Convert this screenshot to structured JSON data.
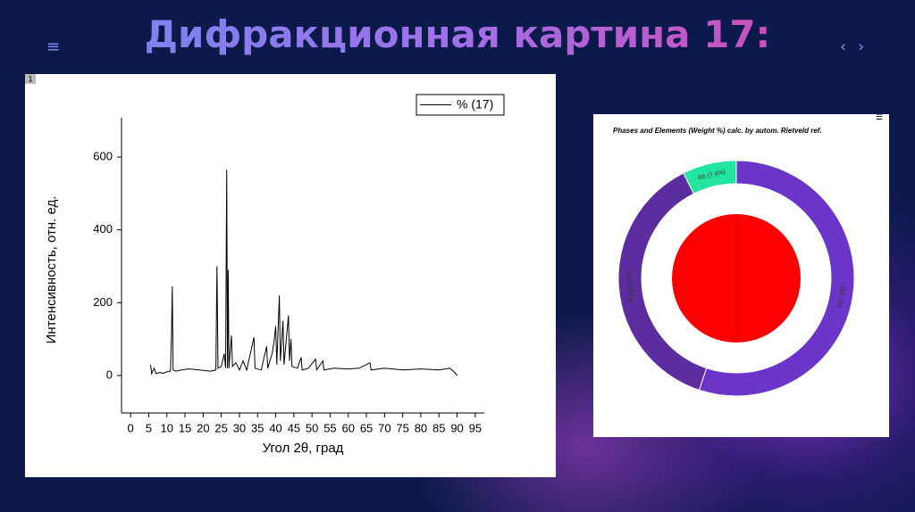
{
  "title": "Дифракционная картина 17:",
  "chart_data": [
    {
      "type": "line",
      "label": "1",
      "xlabel": "Угол 2θ, град",
      "ylabel": "Интенсивность, отн. ед.",
      "xlim": [
        -2.5,
        97.5
      ],
      "ylim": [
        -103,
        708
      ],
      "xticks": [
        0,
        5,
        10,
        15,
        20,
        25,
        30,
        35,
        40,
        45,
        50,
        55,
        60,
        65,
        70,
        75,
        80,
        85,
        90,
        95
      ],
      "yticks": [
        0,
        200,
        400,
        600
      ],
      "legend": "upper right",
      "x": [
        5.5,
        5.8,
        6.5,
        7,
        8,
        9,
        10,
        11,
        11.3,
        11.5,
        11.7,
        12.5,
        14,
        16,
        18,
        20,
        22,
        23.5,
        23.8,
        24.1,
        25,
        25.8,
        26.2,
        26.5,
        26.7,
        26.9,
        27.1,
        27.8,
        28.1,
        29,
        30,
        31,
        32,
        34,
        34.3,
        36,
        37.5,
        37.8,
        39,
        39.5,
        40,
        40.3,
        41,
        41.3,
        42,
        42.3,
        43.5,
        43.8,
        44.2,
        44.5,
        46,
        47,
        47.3,
        49,
        51,
        51.3,
        53,
        53.3,
        56,
        60,
        63,
        66,
        66.3,
        70,
        75,
        80,
        85,
        88,
        89,
        90
      ],
      "series": [
        {
          "name": "% (17)",
          "color": "#000000",
          "values": [
            30,
            5,
            20,
            5,
            8,
            6,
            10,
            12,
            120,
            245,
            15,
            12,
            15,
            18,
            16,
            14,
            12,
            15,
            300,
            20,
            25,
            60,
            20,
            565,
            20,
            290,
            20,
            110,
            25,
            35,
            15,
            40,
            15,
            105,
            20,
            15,
            80,
            20,
            60,
            90,
            135,
            30,
            220,
            40,
            150,
            30,
            165,
            40,
            100,
            25,
            20,
            50,
            15,
            20,
            45,
            15,
            40,
            15,
            20,
            18,
            20,
            35,
            15,
            20,
            15,
            18,
            15,
            20,
            12,
            0
          ]
        }
      ]
    },
    {
      "type": "pie",
      "title": "Phases and Elements (Weight %) calc. by autom. Rietveld ref.",
      "categories": [
        "I",
        "Ag",
        "Rb"
      ],
      "values": [
        55.1,
        37.5,
        7.4
      ],
      "value_labels": [
        "I (55.1%)",
        "Ag (37.5%)",
        "Rb (7.4%)"
      ],
      "colors": [
        "#6a35c8",
        "#5b2d9e",
        "#22e6a0"
      ]
    }
  ]
}
